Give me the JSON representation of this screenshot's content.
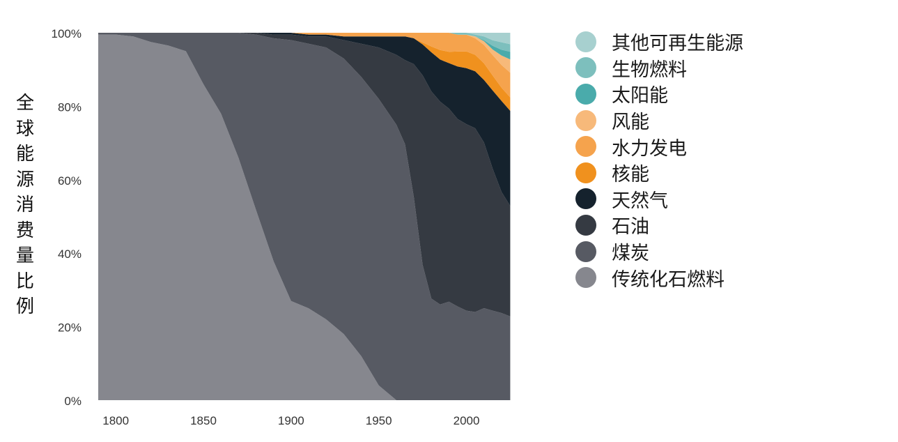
{
  "chart_data": {
    "type": "area",
    "stacked": true,
    "normalized": true,
    "title": "",
    "xlabel": "",
    "ylabel": "全球能源消费量比例",
    "x_ticks": [
      1800,
      1850,
      1900,
      1950,
      2000
    ],
    "y_ticks": [
      "0%",
      "20%",
      "40%",
      "60%",
      "80%",
      "100%"
    ],
    "xlim": [
      1790,
      2028
    ],
    "ylim": [
      0,
      100
    ],
    "grid": false,
    "legend_position": "right",
    "x": [
      1790,
      1800,
      1810,
      1820,
      1830,
      1840,
      1850,
      1860,
      1870,
      1880,
      1890,
      1900,
      1910,
      1920,
      1930,
      1940,
      1950,
      1960,
      1965,
      1970,
      1975,
      1980,
      1985,
      1990,
      1995,
      2000,
      2005,
      2010,
      2015,
      2020,
      2025
    ],
    "series": [
      {
        "name": "传统化石燃料",
        "color": "#86878e",
        "values": [
          99.5,
          99.5,
          99,
          97.5,
          96.5,
          95,
          86,
          78,
          66,
          52,
          38,
          27,
          25,
          22,
          18,
          12,
          4,
          0,
          0,
          0,
          0,
          0,
          0,
          0,
          0,
          0,
          0,
          0,
          0,
          0,
          0
        ]
      },
      {
        "name": "煤炭",
        "color": "#575a63",
        "values": [
          0.5,
          0.5,
          1,
          2.5,
          3.5,
          5,
          14,
          22,
          34,
          48,
          61,
          71,
          72,
          74,
          75,
          76,
          78,
          75,
          70,
          55,
          35,
          26,
          25,
          26,
          25,
          24,
          24,
          25,
          24,
          23,
          22
        ]
      },
      {
        "name": "石油",
        "color": "#353a42",
        "values": [
          0,
          0,
          0,
          0,
          0,
          0,
          0,
          0,
          0,
          0.5,
          1,
          1.5,
          2,
          3,
          5,
          9,
          14,
          19,
          23,
          36,
          49,
          53,
          53,
          51,
          50,
          50,
          50,
          45,
          38,
          32,
          29
        ]
      },
      {
        "name": "天然气",
        "color": "#15222d",
        "values": [
          0,
          0,
          0,
          0,
          0,
          0,
          0,
          0,
          0,
          0,
          0.5,
          0.5,
          0.5,
          0.5,
          1,
          2,
          3,
          5,
          6.5,
          7,
          8,
          10,
          11,
          12,
          14,
          15,
          15.5,
          17,
          21,
          24,
          25
        ]
      },
      {
        "name": "核能",
        "color": "#f0911e",
        "values": [
          0,
          0,
          0,
          0,
          0,
          0,
          0,
          0,
          0,
          0,
          0,
          0,
          0,
          0,
          0,
          0,
          0,
          0,
          0,
          0,
          0.5,
          1.5,
          2.5,
          3,
          4,
          4.5,
          4.5,
          4.5,
          4,
          3.5,
          3.5
        ]
      },
      {
        "name": "水力发电",
        "color": "#f5a34d",
        "values": [
          0,
          0,
          0,
          0,
          0,
          0,
          0,
          0,
          0,
          0,
          0,
          0,
          0.5,
          0.5,
          1,
          1,
          1,
          1,
          1,
          1.5,
          2.5,
          3.5,
          4.5,
          5,
          4.5,
          4.5,
          4.5,
          5,
          5.5,
          6,
          6.5
        ]
      },
      {
        "name": "风能",
        "color": "#f7b97a",
        "values": [
          0,
          0,
          0,
          0,
          0,
          0,
          0,
          0,
          0,
          0,
          0,
          0,
          0,
          0,
          0,
          0,
          0,
          0,
          0,
          0,
          0,
          0,
          0,
          0,
          0,
          0,
          0.5,
          1,
          1.5,
          2.5,
          3.5
        ]
      },
      {
        "name": "太阳能",
        "color": "#4aabab",
        "values": [
          0,
          0,
          0,
          0,
          0,
          0,
          0,
          0,
          0,
          0,
          0,
          0,
          0,
          0,
          0,
          0,
          0,
          0,
          0,
          0,
          0,
          0,
          0,
          0,
          0,
          0,
          0,
          0.3,
          1,
          1.5,
          2
        ]
      },
      {
        "name": "生物燃料",
        "color": "#7dbfbd",
        "values": [
          0,
          0,
          0,
          0,
          0,
          0,
          0,
          0,
          0,
          0,
          0,
          0,
          0,
          0,
          0,
          0,
          0,
          0,
          0,
          0,
          0,
          0,
          0,
          0,
          0.5,
          0.5,
          0.5,
          1,
          1.5,
          2,
          2
        ]
      },
      {
        "name": "其他可再生能源",
        "color": "#a7d0cf",
        "values": [
          0,
          0,
          0,
          0,
          0,
          0,
          0,
          0,
          0,
          0,
          0,
          0,
          0,
          0,
          0,
          0,
          0,
          0,
          0,
          0,
          0,
          0,
          0,
          0,
          0,
          0,
          0.5,
          1,
          2,
          2.5,
          3
        ]
      }
    ]
  }
}
